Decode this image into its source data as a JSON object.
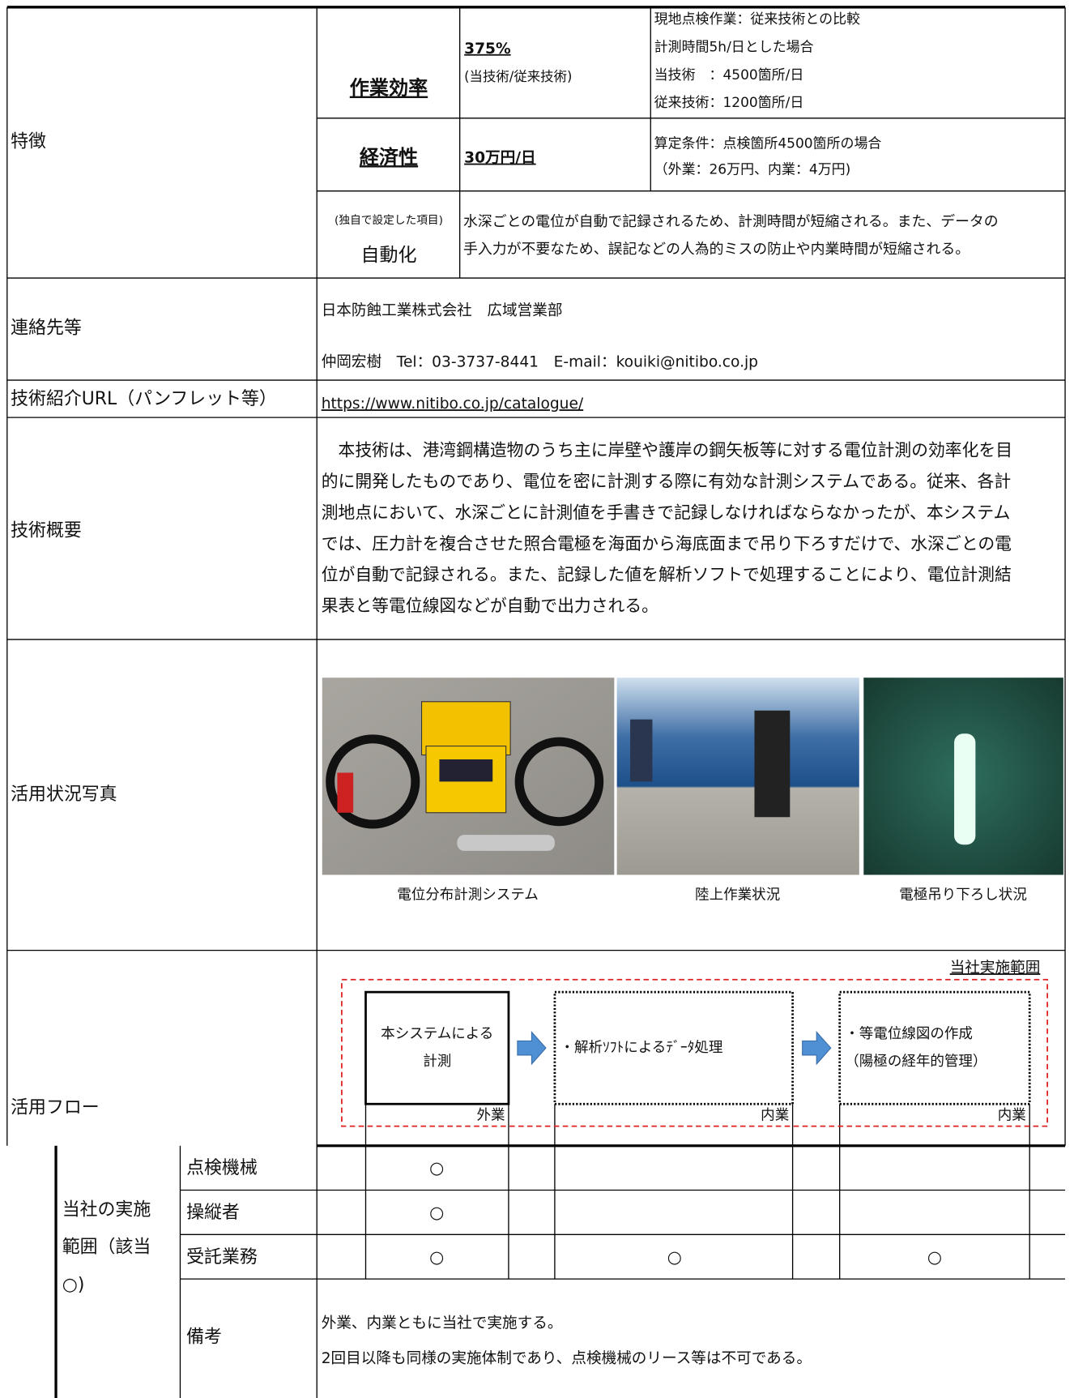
{
  "features": {
    "label": "特徴",
    "efficiency": {
      "label": "作業効率",
      "value": "375%",
      "note": "(当技術/従来技術)",
      "detail": [
        "現地点検作業：従来技術との比較",
        "計測時間5h/日とした場合",
        "当技術　：4500箇所/日",
        "従来技術：1200箇所/日"
      ]
    },
    "economy": {
      "label": "経済性",
      "value": "30万円/日",
      "detail": [
        "算定条件：点検箇所4500箇所の場合",
        "（外業：26万円、内業：4万円)"
      ]
    },
    "automation": {
      "note": "(独自で設定した項目)",
      "label": "自動化",
      "detail": [
        "水深ごとの電位が自動で記録されるため、計測時間が短縮される。また、データの",
        "手入力が不要なため、誤記などの人為的ミスの防止や内業時間が短縮される。"
      ]
    }
  },
  "contact": {
    "label": "連絡先等",
    "lines": [
      "日本防蝕工業株式会社　広域営業部",
      "仲岡宏樹　Tel：03-3737-8441　E-mail：kouiki@nitibo.co.jp"
    ]
  },
  "url": {
    "label": "技術紹介URL（パンフレット等）",
    "link": "https://www.nitibo.co.jp/catalogue/"
  },
  "overview": {
    "label": "技術概要",
    "lines": [
      "　本技術は、港湾鋼構造物のうち主に岸壁や護岸の鋼矢板等に対する電位計測の効率化を目",
      "的に開発したものであり、電位を密に計測する際に有効な計測システムである。従来、各計",
      "測地点において、水深ごとに計測値を手書きで記録しなければならなかったが、本システム",
      "では、圧力計を複合させた照合電極を海面から海底面まで吊り下ろすだけで、水深ごとの電",
      "位が自動で記録される。また、記録した値を解析ソフトで処理することにより、電位計測結",
      "果表と等電位線図などが自動で出力される。"
    ]
  },
  "photos": {
    "label": "活用状況写真",
    "captions": [
      "電位分布計測システム",
      "陸上作業状況",
      "電極吊り下ろし状況"
    ]
  },
  "flow": {
    "label": "活用フロー",
    "scope_label": "当社実施範囲",
    "steps": [
      {
        "text": [
          "本システムによる",
          "計測"
        ],
        "kind": "外業"
      },
      {
        "text": [
          "・解析ｿﾌﾄによるﾃﾞｰﾀ処理"
        ],
        "kind": "内業"
      },
      {
        "text": [
          "・等電位線図の作成",
          "（陽極の経年的管理）"
        ],
        "kind": "内業"
      }
    ]
  },
  "scope": {
    "label": [
      "当社の実施",
      "範囲（該当",
      "○)"
    ],
    "rows": [
      {
        "label": "点検機械",
        "marks": {
          "step1": "○"
        }
      },
      {
        "label": "操縦者",
        "marks": {
          "step1": "○"
        }
      },
      {
        "label": "受託業務",
        "marks": {
          "step1": "○",
          "step2": "○",
          "step3": "○"
        }
      }
    ]
  },
  "remarks": {
    "label": "備考",
    "lines": [
      "外業、内業ともに当社で実施する。",
      "2回目以降も同様の実施体制であり、点検機械のリース等は不可である。"
    ]
  }
}
